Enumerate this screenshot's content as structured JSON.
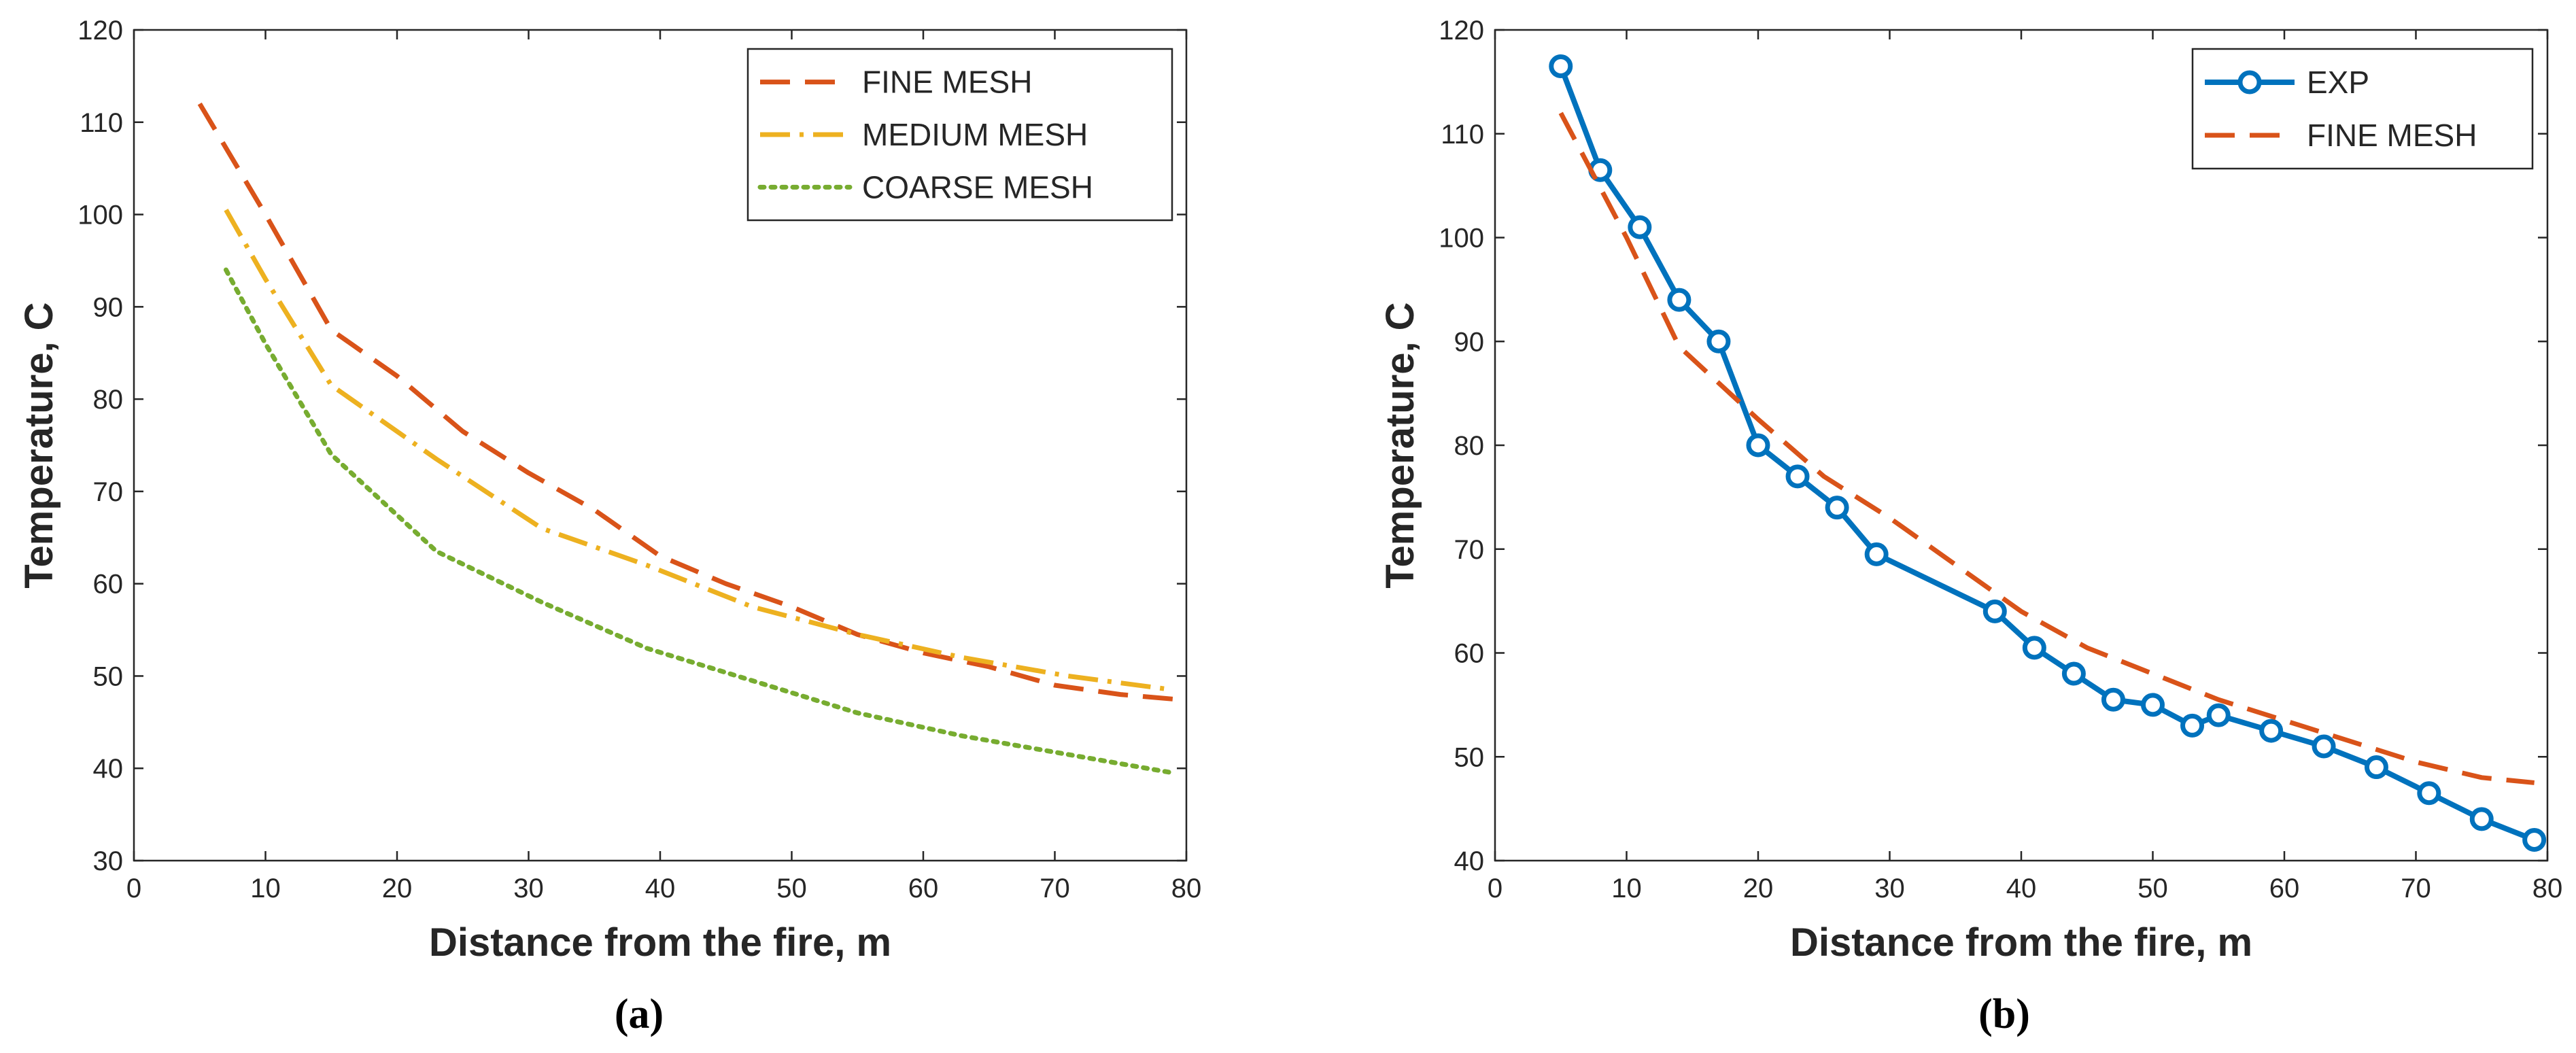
{
  "chart_data": [
    {
      "type": "line",
      "panel_label": "(a)",
      "xlabel": "Distance from the fire, m",
      "ylabel": "Temperature, C",
      "xlim": [
        0,
        80
      ],
      "ylim": [
        30,
        120
      ],
      "xticks": [
        0,
        10,
        20,
        30,
        40,
        50,
        60,
        70,
        80
      ],
      "yticks": [
        30,
        40,
        50,
        60,
        70,
        80,
        90,
        100,
        110,
        120
      ],
      "legend_position": "top-right",
      "series": [
        {
          "name": "FINE MESH",
          "style": "dashed",
          "color": "#D95319",
          "x": [
            5,
            10,
            15,
            20,
            25,
            30,
            35,
            40,
            45,
            50,
            55,
            60,
            65,
            70,
            75,
            79
          ],
          "y": [
            112,
            100,
            87.5,
            82.5,
            76.5,
            72,
            68,
            63,
            60,
            57.5,
            54.5,
            52.5,
            51,
            49,
            48,
            47.5
          ]
        },
        {
          "name": "MEDIUM MESH",
          "style": "dashdot",
          "color": "#EDB120",
          "x": [
            7,
            10,
            15,
            23,
            31,
            39,
            47,
            55,
            63,
            71,
            79
          ],
          "y": [
            100.5,
            93,
            81.5,
            73.5,
            66,
            62,
            57.5,
            54.5,
            52,
            50,
            48.5
          ]
        },
        {
          "name": "COARSE MESH",
          "style": "dotted",
          "color": "#77AC30",
          "x": [
            7,
            10,
            15,
            23,
            31,
            39,
            47,
            55,
            63,
            71,
            79
          ],
          "y": [
            94,
            86,
            74,
            63.5,
            58,
            53,
            49.5,
            46,
            43.5,
            41.5,
            39.5
          ]
        }
      ]
    },
    {
      "type": "line",
      "panel_label": "(b)",
      "xlabel": "Distance from the fire, m",
      "ylabel": "Temperature, C",
      "xlim": [
        0,
        80
      ],
      "ylim": [
        40,
        120
      ],
      "xticks": [
        0,
        10,
        20,
        30,
        40,
        50,
        60,
        70,
        80
      ],
      "yticks": [
        40,
        50,
        60,
        70,
        80,
        90,
        100,
        110,
        120
      ],
      "legend_position": "top-right",
      "series": [
        {
          "name": "EXP",
          "style": "solid-markers",
          "color": "#0072BD",
          "x": [
            5,
            8,
            11,
            14,
            17,
            20,
            23,
            26,
            29,
            38,
            41,
            44,
            47,
            50,
            53,
            55,
            59,
            63,
            67,
            71,
            75,
            79
          ],
          "y": [
            116.5,
            106.5,
            101,
            94,
            90,
            80,
            77,
            74,
            69.5,
            64,
            60.5,
            58,
            55.5,
            55,
            53,
            54,
            52.5,
            51,
            49,
            46.5,
            44,
            42
          ]
        },
        {
          "name": "FINE MESH",
          "style": "dashed",
          "color": "#D95319",
          "x": [
            5,
            10,
            14,
            20,
            25,
            30,
            35,
            40,
            45,
            50,
            55,
            60,
            65,
            70,
            75,
            79
          ],
          "y": [
            112,
            100,
            89.5,
            82.5,
            77,
            73,
            68.5,
            64,
            60.5,
            58,
            55.5,
            53.5,
            51.5,
            49.5,
            48,
            47.5
          ]
        }
      ]
    }
  ]
}
